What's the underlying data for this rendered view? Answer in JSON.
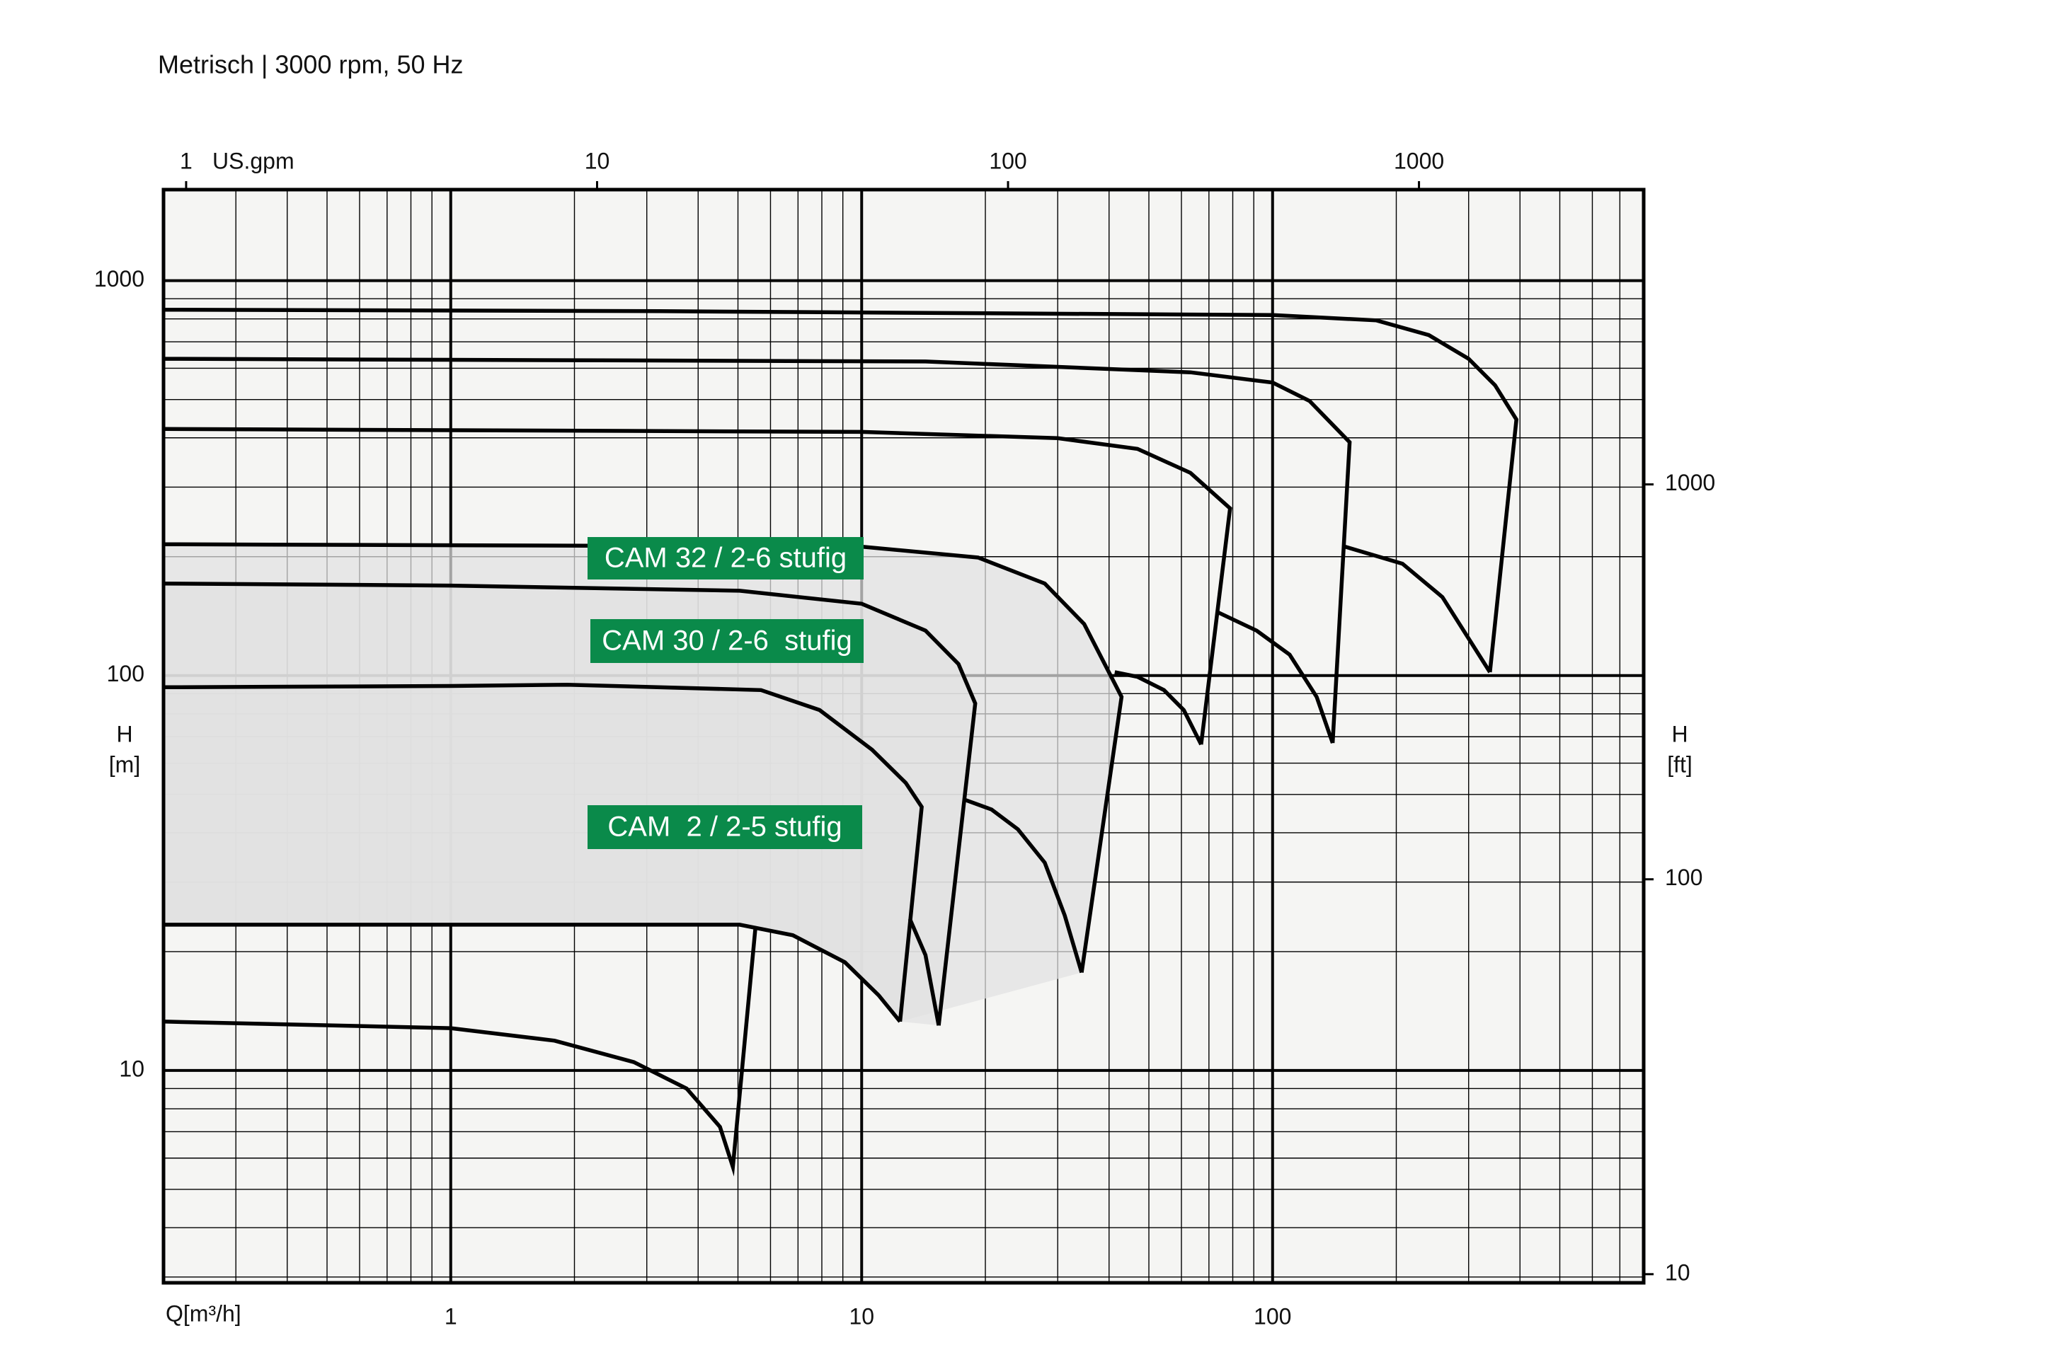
{
  "chart_data": {
    "type": "line",
    "title": "Metrisch | 3000 rpm, 50 Hz",
    "x_label": "Q[m³/h]",
    "x2_label": "US.gpm",
    "y_label": [
      "H",
      "[m]"
    ],
    "y2_label": [
      "H",
      "[ft]"
    ],
    "xscale": "log",
    "yscale": "log",
    "xlim": [
      0.2,
      800
    ],
    "xticks": [
      1,
      10,
      100
    ],
    "ylim": [
      2.9,
      1700
    ],
    "yticks": [
      10,
      100,
      1000
    ],
    "x2lim": [
      0.881,
      3522
    ],
    "x2ticks": [
      1,
      10,
      100,
      1000
    ],
    "y2lim": [
      9.51,
      5578
    ],
    "y2ticks": [
      10,
      100,
      1000
    ],
    "grid": true,
    "minor_grid": true,
    "annotations": [
      "CAM 32 / 2-6 stufig",
      "CAM 30 / 2-6  stufig",
      "CAM  2 / 2-5 stufig"
    ],
    "annotation_color": "#0a8a4a",
    "series": [
      {
        "color": "#000000",
        "x": [
          0.2,
          3.23,
          100,
          179,
          240,
          300,
          348,
          392,
          338
        ],
        "values": [
          844,
          837,
          818,
          793,
          728,
          634,
          543,
          445,
          102
        ]
      },
      {
        "color": "#000000",
        "x": [
          150,
          207,
          259,
          338
        ],
        "values": [
          212,
          192,
          158,
          102
        ]
      },
      {
        "color": "#000000",
        "x": [
          0.2,
          14.3,
          63.1,
          100,
          123,
          154,
          140
        ],
        "values": [
          634,
          624,
          586,
          552,
          496,
          390,
          67.5
        ]
      },
      {
        "color": "#000000",
        "x": [
          73.2,
          91.4,
          110,
          128,
          140
        ],
        "values": [
          145,
          130,
          113,
          88.3,
          67.5
        ]
      },
      {
        "color": "#000000",
        "x": [
          0.2,
          10,
          30,
          46.9,
          63.1,
          78.8,
          67.0
        ],
        "values": [
          421,
          414,
          399,
          375,
          326,
          265,
          66.9
        ]
      },
      {
        "color": "#000000",
        "x": [
          41.3,
          46.9,
          54.4,
          60.8,
          67.0
        ],
        "values": [
          102,
          99.3,
          91.9,
          81.8,
          66.9
        ]
      },
      {
        "color": "#000000",
        "fill": "#e2e2e2",
        "x": [
          0.2,
          10,
          19.2,
          27.9,
          34.8,
          42.9,
          34.3
        ],
        "values": [
          215,
          212,
          199,
          171,
          135,
          88.3,
          17.7
        ]
      },
      {
        "color": "#000000",
        "x": [
          17.9,
          20.7,
          24.0,
          27.9,
          31.2,
          34.3
        ],
        "values": [
          48.4,
          45.8,
          40.8,
          33.6,
          24.7,
          17.7
        ]
      },
      {
        "color": "#000000",
        "fill": "#e2e2e2",
        "x": [
          0.2,
          1,
          5.05,
          10,
          14.3,
          17.2,
          18.9,
          15.4
        ],
        "values": [
          171,
          169,
          164,
          152,
          130,
          107,
          85.0,
          13.0
        ]
      },
      {
        "color": "#000000",
        "x": [
          13.1,
          14.3,
          15.4
        ],
        "values": [
          24.2,
          19.6,
          13.0
        ]
      },
      {
        "color": "#000000",
        "fill": "#e2e2e2",
        "x": [
          0.2,
          1,
          1.92,
          5.69,
          7.9,
          10.6,
          12.8,
          14.0,
          12.4
        ],
        "values": [
          93.4,
          94.1,
          94.8,
          91.9,
          81.8,
          64.9,
          53.5,
          46.5,
          13.3
        ]
      },
      {
        "color": "#000000",
        "fill_base": true,
        "x": [
          0.2,
          5.05,
          6.8,
          9.1,
          11.0,
          12.4
        ],
        "values": [
          23.4,
          23.4,
          22.0,
          18.8,
          15.5,
          13.3
        ]
      },
      {
        "color": "#000000",
        "x": [
          0.2,
          1,
          1.79,
          2.79,
          3.75,
          4.52,
          4.86,
          5.52
        ],
        "values": [
          13.3,
          12.8,
          11.9,
          10.5,
          9.0,
          7.2,
          5.7,
          23.2
        ]
      }
    ]
  }
}
